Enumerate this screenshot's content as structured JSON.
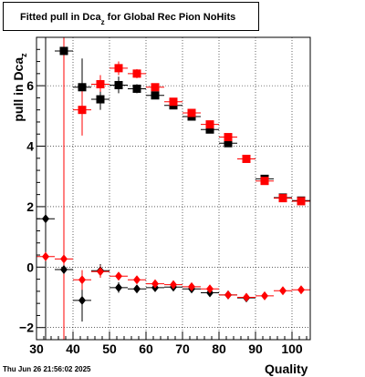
{
  "title": {
    "main": "Fitted pull in Dca",
    "sub": "z",
    "rest": " for Global Rec Pion NoHits"
  },
  "ylabel": {
    "main": "pull in Dca",
    "sub": "z"
  },
  "xlabel": "Quality",
  "timestamp": "Thu Jun 26 21:56:02 2025",
  "colors": {
    "black": "#000000",
    "red": "#ff0000",
    "grid": "#000000"
  },
  "chart_data": {
    "type": "scatter",
    "xlim": [
      30,
      105
    ],
    "ylim": [
      -2.4,
      7.6
    ],
    "xticks": [
      30,
      40,
      50,
      60,
      70,
      80,
      90,
      100
    ],
    "xtick_labels": [
      "30",
      "40",
      "50",
      "60",
      "70",
      "80",
      "90",
      "100"
    ],
    "yticks": [
      -2,
      0,
      2,
      4,
      6
    ],
    "ytick_labels": [
      "−2",
      "0",
      "2",
      "4",
      "6"
    ],
    "grid": true,
    "series": [
      {
        "color": "black",
        "marker": "square",
        "points": [
          {
            "x": 37.5,
            "y": 7.15,
            "xerr": 2.5,
            "ylo": -2.4,
            "yhi": 7.6
          },
          {
            "x": 42.5,
            "y": 5.95,
            "xerr": 2.5,
            "ylo": 5.3,
            "yhi": 6.9
          },
          {
            "x": 47.5,
            "y": 5.55,
            "xerr": 2.5,
            "ylo": 5.2,
            "yhi": 5.85
          },
          {
            "x": 52.5,
            "y": 6.02,
            "xerr": 2.5,
            "ylo": 5.75,
            "yhi": 6.3
          },
          {
            "x": 57.5,
            "y": 5.9,
            "xerr": 2.5,
            "ylo": 5.75,
            "yhi": 6.05
          },
          {
            "x": 62.5,
            "y": 5.68,
            "xerr": 2.5,
            "ylo": 5.55,
            "yhi": 5.8
          },
          {
            "x": 67.5,
            "y": 5.35,
            "xerr": 2.5,
            "ylo": 5.25,
            "yhi": 5.45
          },
          {
            "x": 72.5,
            "y": 4.98,
            "xerr": 2.5,
            "ylo": 4.9,
            "yhi": 5.06
          },
          {
            "x": 77.5,
            "y": 4.55,
            "xerr": 2.5,
            "ylo": 4.48,
            "yhi": 4.62
          },
          {
            "x": 82.5,
            "y": 4.1,
            "xerr": 2.5,
            "ylo": 4.04,
            "yhi": 4.16
          },
          {
            "x": 92.5,
            "y": 2.92,
            "xerr": 2.5,
            "ylo": 2.86,
            "yhi": 2.98
          },
          {
            "x": 97.5,
            "y": 2.3,
            "xerr": 2.5,
            "ylo": 2.25,
            "yhi": 2.35
          },
          {
            "x": 102.5,
            "y": 2.2,
            "xerr": 2.5,
            "ylo": 2.15,
            "yhi": 2.25
          }
        ]
      },
      {
        "color": "red",
        "marker": "square",
        "points": [
          {
            "x": 42.5,
            "y": 5.2,
            "xerr": 2.5,
            "ylo": 4.35,
            "yhi": 5.9
          },
          {
            "x": 47.5,
            "y": 6.05,
            "xerr": 2.5,
            "ylo": 5.8,
            "yhi": 6.35
          },
          {
            "x": 52.5,
            "y": 6.58,
            "xerr": 2.5,
            "ylo": 6.35,
            "yhi": 6.8
          },
          {
            "x": 57.5,
            "y": 6.4,
            "xerr": 2.5,
            "ylo": 6.25,
            "yhi": 6.55
          },
          {
            "x": 62.5,
            "y": 5.95,
            "xerr": 2.5,
            "ylo": 5.83,
            "yhi": 6.07
          },
          {
            "x": 67.5,
            "y": 5.47,
            "xerr": 2.5,
            "ylo": 5.38,
            "yhi": 5.56
          },
          {
            "x": 72.5,
            "y": 5.1,
            "xerr": 2.5,
            "ylo": 5.02,
            "yhi": 5.18
          },
          {
            "x": 77.5,
            "y": 4.72,
            "xerr": 2.5,
            "ylo": 4.65,
            "yhi": 4.79
          },
          {
            "x": 82.5,
            "y": 4.3,
            "xerr": 2.5,
            "ylo": 4.24,
            "yhi": 4.36
          },
          {
            "x": 87.5,
            "y": 3.58,
            "xerr": 2.5,
            "ylo": 3.52,
            "yhi": 3.64
          },
          {
            "x": 92.5,
            "y": 2.85,
            "xerr": 2.5,
            "ylo": 2.79,
            "yhi": 2.91
          },
          {
            "x": 97.5,
            "y": 2.28,
            "xerr": 2.5,
            "ylo": 2.23,
            "yhi": 2.33
          },
          {
            "x": 102.5,
            "y": 2.18,
            "xerr": 2.5,
            "ylo": 2.13,
            "yhi": 2.23
          }
        ]
      },
      {
        "color": "black",
        "marker": "diamond",
        "points": [
          {
            "x": 32.5,
            "y": 1.6,
            "xerr": 2.5,
            "ylo": -2.4,
            "yhi": 7.6
          },
          {
            "x": 37.5,
            "y": -0.08,
            "xerr": 2.5,
            "ylo": -2.4,
            "yhi": 7.6
          },
          {
            "x": 42.5,
            "y": -1.1,
            "xerr": 2.5,
            "ylo": -1.8,
            "yhi": -0.4
          },
          {
            "x": 47.5,
            "y": -0.12,
            "xerr": 2.5,
            "ylo": -0.35,
            "yhi": 0.1
          },
          {
            "x": 52.5,
            "y": -0.68,
            "xerr": 2.5,
            "ylo": -0.85,
            "yhi": -0.5
          },
          {
            "x": 57.5,
            "y": -0.72,
            "xerr": 2.5,
            "ylo": -0.82,
            "yhi": -0.62
          },
          {
            "x": 62.5,
            "y": -0.68,
            "xerr": 2.5,
            "ylo": -0.76,
            "yhi": -0.6
          },
          {
            "x": 67.5,
            "y": -0.66,
            "xerr": 2.5,
            "ylo": -0.73,
            "yhi": -0.59
          },
          {
            "x": 72.5,
            "y": -0.72,
            "xerr": 2.5,
            "ylo": -0.78,
            "yhi": -0.66
          },
          {
            "x": 77.5,
            "y": -0.85,
            "xerr": 2.5,
            "ylo": -0.9,
            "yhi": -0.8
          },
          {
            "x": 82.5,
            "y": -0.92,
            "xerr": 2.5,
            "ylo": -0.96,
            "yhi": -0.88
          },
          {
            "x": 87.5,
            "y": -1.02,
            "xerr": 2.5,
            "ylo": -1.06,
            "yhi": -0.98
          }
        ]
      },
      {
        "color": "red",
        "marker": "diamond",
        "points": [
          {
            "x": 32.5,
            "y": 0.35,
            "xerr": 2.5,
            "ylo": 0.2,
            "yhi": 0.5
          },
          {
            "x": 37.5,
            "y": 0.27,
            "xerr": 2.5,
            "ylo": -2.4,
            "yhi": 7.6
          },
          {
            "x": 42.5,
            "y": -0.42,
            "xerr": 2.5,
            "ylo": -0.75,
            "yhi": -0.1
          },
          {
            "x": 47.5,
            "y": -0.15,
            "xerr": 2.5,
            "ylo": -0.35,
            "yhi": 0.05
          },
          {
            "x": 52.5,
            "y": -0.3,
            "xerr": 2.5,
            "ylo": -0.42,
            "yhi": -0.18
          },
          {
            "x": 57.5,
            "y": -0.42,
            "xerr": 2.5,
            "ylo": -0.5,
            "yhi": -0.34
          },
          {
            "x": 62.5,
            "y": -0.55,
            "xerr": 2.5,
            "ylo": -0.62,
            "yhi": -0.48
          },
          {
            "x": 67.5,
            "y": -0.58,
            "xerr": 2.5,
            "ylo": -0.64,
            "yhi": -0.52
          },
          {
            "x": 72.5,
            "y": -0.65,
            "xerr": 2.5,
            "ylo": -0.7,
            "yhi": -0.6
          },
          {
            "x": 77.5,
            "y": -0.72,
            "xerr": 2.5,
            "ylo": -0.77,
            "yhi": -0.67
          },
          {
            "x": 82.5,
            "y": -0.92,
            "xerr": 2.5,
            "ylo": -0.96,
            "yhi": -0.88
          },
          {
            "x": 87.5,
            "y": -1.0,
            "xerr": 2.5,
            "ylo": -1.04,
            "yhi": -0.96
          },
          {
            "x": 92.5,
            "y": -0.95,
            "xerr": 2.5,
            "ylo": -0.99,
            "yhi": -0.91
          },
          {
            "x": 97.5,
            "y": -0.78,
            "xerr": 2.5,
            "ylo": -0.82,
            "yhi": -0.74
          },
          {
            "x": 102.5,
            "y": -0.75,
            "xerr": 2.5,
            "ylo": -0.79,
            "yhi": -0.71
          }
        ]
      }
    ]
  }
}
